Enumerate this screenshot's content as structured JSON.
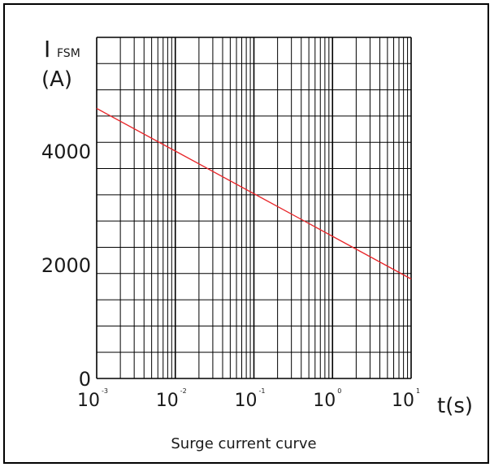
{
  "chart_data": {
    "type": "line",
    "caption": "Surge current curve",
    "ylabel_main": "I",
    "ylabel_sub": "FSM",
    "ylabel_unit": "(A)",
    "xlabel": "t(s)",
    "x_scale": "log",
    "xlim": [
      0.001,
      10
    ],
    "ylim": [
      0,
      6000
    ],
    "grid": true,
    "y_ticks": [
      {
        "value": 0,
        "label": "0"
      },
      {
        "value": 2000,
        "label": "2000"
      },
      {
        "value": 4000,
        "label": "4000"
      }
    ],
    "x_ticks": [
      {
        "value": 0.001,
        "base": "10",
        "exp": "-3"
      },
      {
        "value": 0.01,
        "base": "10",
        "exp": "-2"
      },
      {
        "value": 0.1,
        "base": "10",
        "exp": "-1"
      },
      {
        "value": 1,
        "base": "10",
        "exp": "0"
      },
      {
        "value": 10,
        "base": "10",
        "exp": "1"
      }
    ],
    "series": [
      {
        "x": [
          0.001,
          0.01,
          0.1,
          1,
          10
        ],
        "y": [
          4750,
          4000,
          3250,
          2500,
          1750
        ]
      }
    ]
  },
  "colors": {
    "curve": "#e8262a",
    "grid": "#000000",
    "text": "#1a1a1a"
  }
}
